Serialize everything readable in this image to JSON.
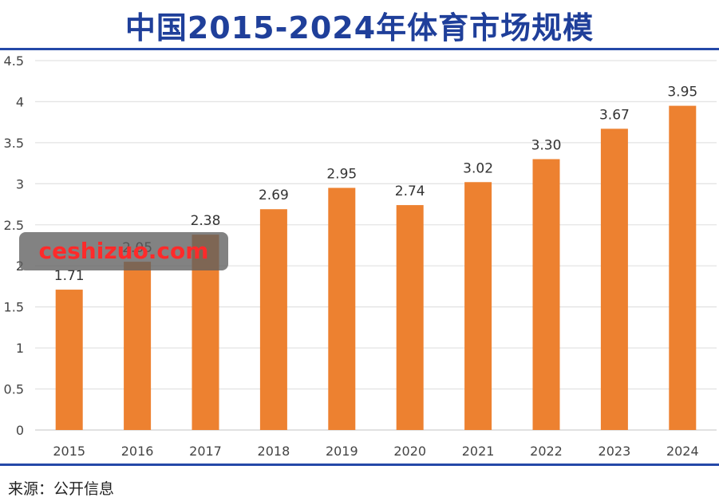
{
  "chart_data": {
    "type": "bar",
    "title": "中国2015-2024年体育市场规模",
    "categories": [
      "2015",
      "2016",
      "2017",
      "2018",
      "2019",
      "2020",
      "2021",
      "2022",
      "2023",
      "2024"
    ],
    "values": [
      1.71,
      2.05,
      2.38,
      2.69,
      2.95,
      2.74,
      3.02,
      3.3,
      3.67,
      3.95
    ],
    "data_labels": [
      "1.71",
      "2.05",
      "2.38",
      "2.69",
      "2.95",
      "2.74",
      "3.02",
      "3.30",
      "3.67",
      "3.95"
    ],
    "yticks": [
      "0",
      "0.5",
      "1",
      "1.5",
      "2",
      "2.5",
      "3",
      "3.5",
      "4",
      "4.5"
    ],
    "ylim": [
      0,
      4.5
    ],
    "grid": true,
    "bar_color": "#ed8130"
  },
  "source": "来源：公开信息",
  "watermark": "ceshizuo.com",
  "colors": {
    "title": "#1f3f9a",
    "rule": "#2448a8",
    "grid": "#e4e4e4"
  }
}
